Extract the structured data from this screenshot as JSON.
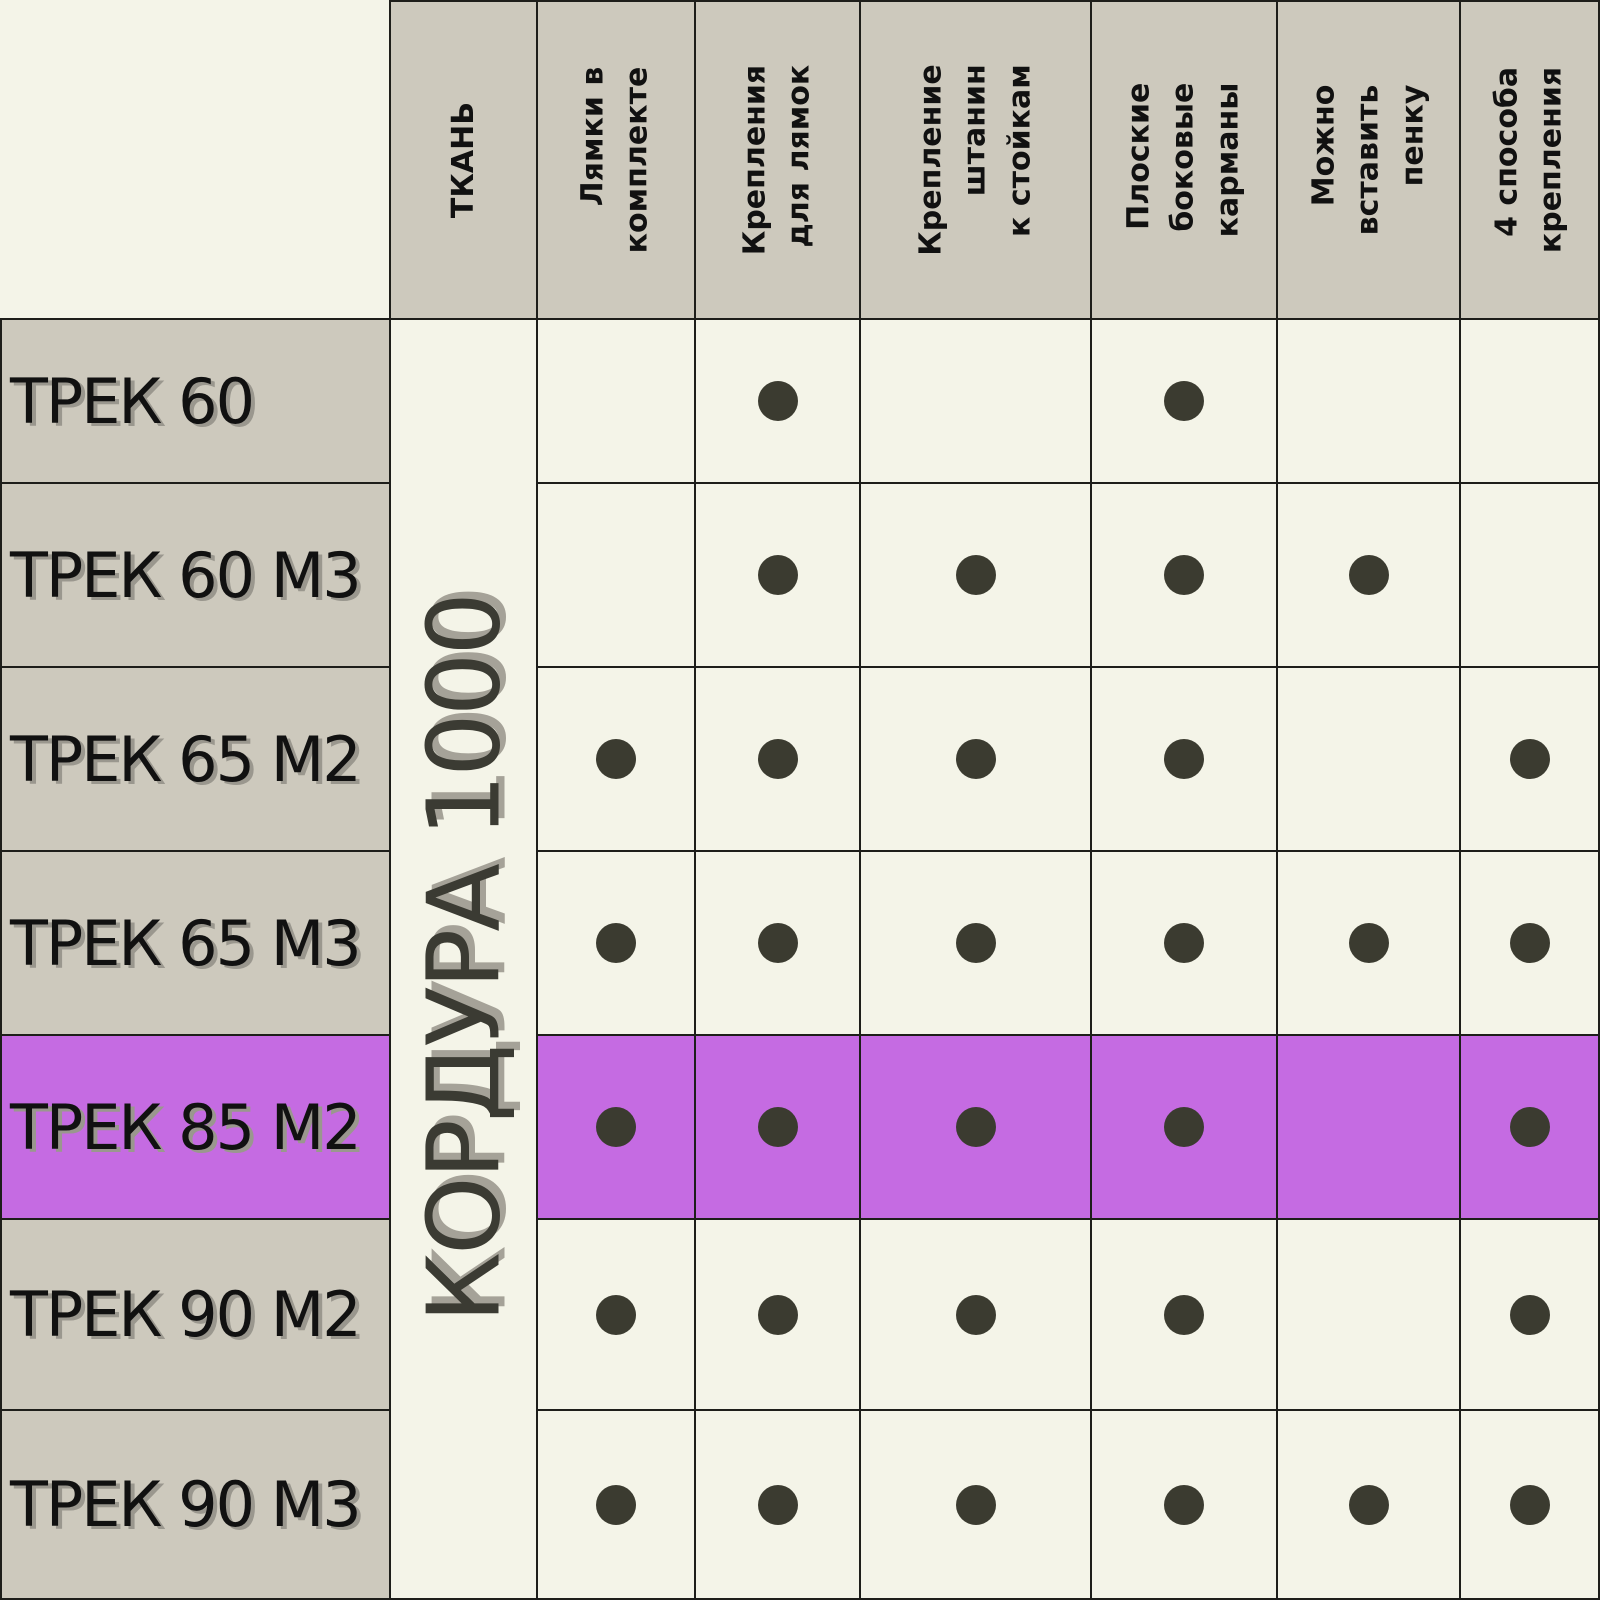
{
  "table": {
    "fabric_header": "ТКАНЬ",
    "fabric_value": "КОРДУРА 1000",
    "feature_headers": [
      "Лямки в\nкомплекте",
      "Крепления\nдля лямок",
      "Крепление\nштанин\nк стойкам",
      "Плоские\nбоковые\nкарманы",
      "Можно\nвставить\nпенку",
      "4 способа\nкрепления"
    ],
    "rows": [
      {
        "name": "ТРЕК 60",
        "highlighted": false,
        "features": [
          false,
          true,
          false,
          true,
          false,
          false
        ]
      },
      {
        "name": "ТРЕК 60 М3",
        "highlighted": false,
        "features": [
          false,
          true,
          true,
          true,
          true,
          false
        ]
      },
      {
        "name": "ТРЕК 65 М2",
        "highlighted": false,
        "features": [
          true,
          true,
          true,
          true,
          false,
          true
        ]
      },
      {
        "name": "ТРЕК 65 М3",
        "highlighted": false,
        "features": [
          true,
          true,
          true,
          true,
          true,
          true
        ]
      },
      {
        "name": "ТРЕК 85 М2",
        "highlighted": true,
        "features": [
          true,
          true,
          true,
          true,
          false,
          true
        ]
      },
      {
        "name": "ТРЕК 90 М2",
        "highlighted": false,
        "features": [
          true,
          true,
          true,
          true,
          false,
          true
        ]
      },
      {
        "name": "ТРЕК 90 М3",
        "highlighted": false,
        "features": [
          true,
          true,
          true,
          true,
          true,
          true
        ]
      }
    ],
    "colors": {
      "background": "#f4f4e8",
      "header_fill": "#cdc9bd",
      "highlight_fill": "#c56be2",
      "dot": "#3b3b30",
      "grid_line": "#1e1e1a"
    },
    "marker_icon": "filled-circle"
  }
}
